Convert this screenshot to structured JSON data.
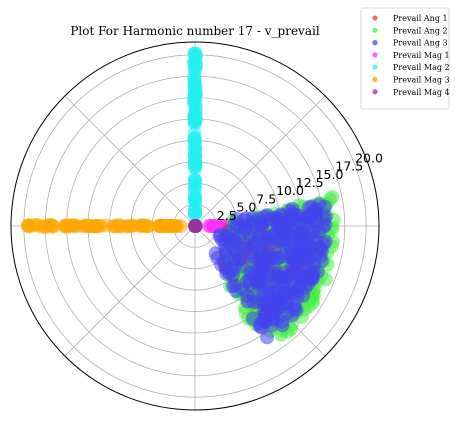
{
  "chart_data": {
    "type": "scatter",
    "projection": "polar",
    "title": "Plot For Harmonic number 17 - v_prevail",
    "r_lim": [
      0,
      21.5
    ],
    "r_ticks": [
      2.5,
      5.0,
      7.5,
      10.0,
      12.5,
      15.0,
      17.5,
      20.0
    ],
    "r_tick_labels": [
      "2.5",
      "5.0",
      "7.5",
      "10.0",
      "12.5",
      "15.0",
      "17.5",
      "20.0"
    ],
    "angle_gridlines_deg": [
      0,
      45,
      90,
      135,
      180,
      225,
      270,
      315
    ],
    "angle_tick_labels_shown": false,
    "grid": true,
    "legend_position": "top-right outside",
    "series": [
      {
        "name": "Prevail Ang 1",
        "color": "#ff3333",
        "theta_deg_range": [
          305,
          358
        ],
        "r_range": [
          3.5,
          13.5
        ],
        "count": 220
      },
      {
        "name": "Prevail Ang 2",
        "color": "#44ee44",
        "theta_deg_range": [
          300,
          12
        ],
        "r_range": [
          3,
          16.5
        ],
        "count": 230
      },
      {
        "name": "Prevail Ang 3",
        "color": "#4444ee",
        "theta_deg_range": [
          302,
          10
        ],
        "r_range": [
          2.8,
          15.5
        ],
        "count": 320
      },
      {
        "name": "Prevail Mag 1",
        "color": "#ff33ff",
        "theta_deg": 0,
        "r_range": [
          1.4,
          14.5
        ],
        "count": 60
      },
      {
        "name": "Prevail Mag 2",
        "color": "#22eeee",
        "theta_deg": 90,
        "r_range": [
          1.2,
          20.2
        ],
        "count": 90
      },
      {
        "name": "Prevail Mag 3",
        "color": "#ffa500",
        "theta_deg": 180,
        "r_range": [
          1.6,
          20.3
        ],
        "count": 80
      },
      {
        "name": "Prevail Mag 4",
        "color": "#993399",
        "theta_deg": 0,
        "r_range": [
          0,
          0.1
        ],
        "count": 8
      }
    ]
  }
}
